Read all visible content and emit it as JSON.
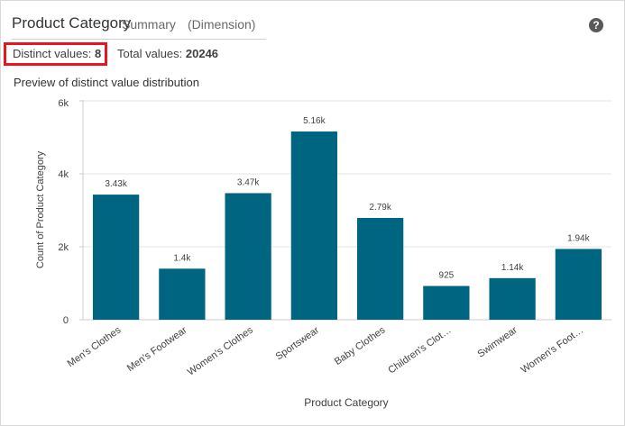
{
  "header": {
    "title": "Product Category",
    "subtitle": "Summary",
    "dimension_label": "(Dimension)",
    "help_icon": "question-circle-icon"
  },
  "stats": {
    "distinct_label": "Distinct values:",
    "distinct_value": "8",
    "total_label": "Total values:",
    "total_value": "20246"
  },
  "preview_label": "Preview of distinct value distribution",
  "colors": {
    "bar": "#006580",
    "highlight_border": "#e8141f",
    "grid": "#e6e6e6",
    "text": "#404040"
  },
  "chart_data": {
    "type": "bar",
    "categories": [
      "Men's Clothes",
      "Men's Footwear",
      "Women's Clothes",
      "Sportswear",
      "Baby Clothes",
      "Children's Clot…",
      "Swimwear",
      "Women's Foot…"
    ],
    "values": [
      3430,
      1400,
      3470,
      5160,
      2790,
      925,
      1140,
      1940
    ],
    "data_labels": [
      "3.43k",
      "1.4k",
      "3.47k",
      "5.16k",
      "2.79k",
      "925",
      "1.14k",
      "1.94k"
    ],
    "xlabel": "Product Category",
    "ylabel": "Count of Product Category",
    "ylim": [
      0,
      6000
    ],
    "yticks": [
      0,
      2000,
      4000,
      6000
    ],
    "ytick_labels": [
      "0",
      "2k",
      "4k",
      "6k"
    ],
    "grid": true
  }
}
